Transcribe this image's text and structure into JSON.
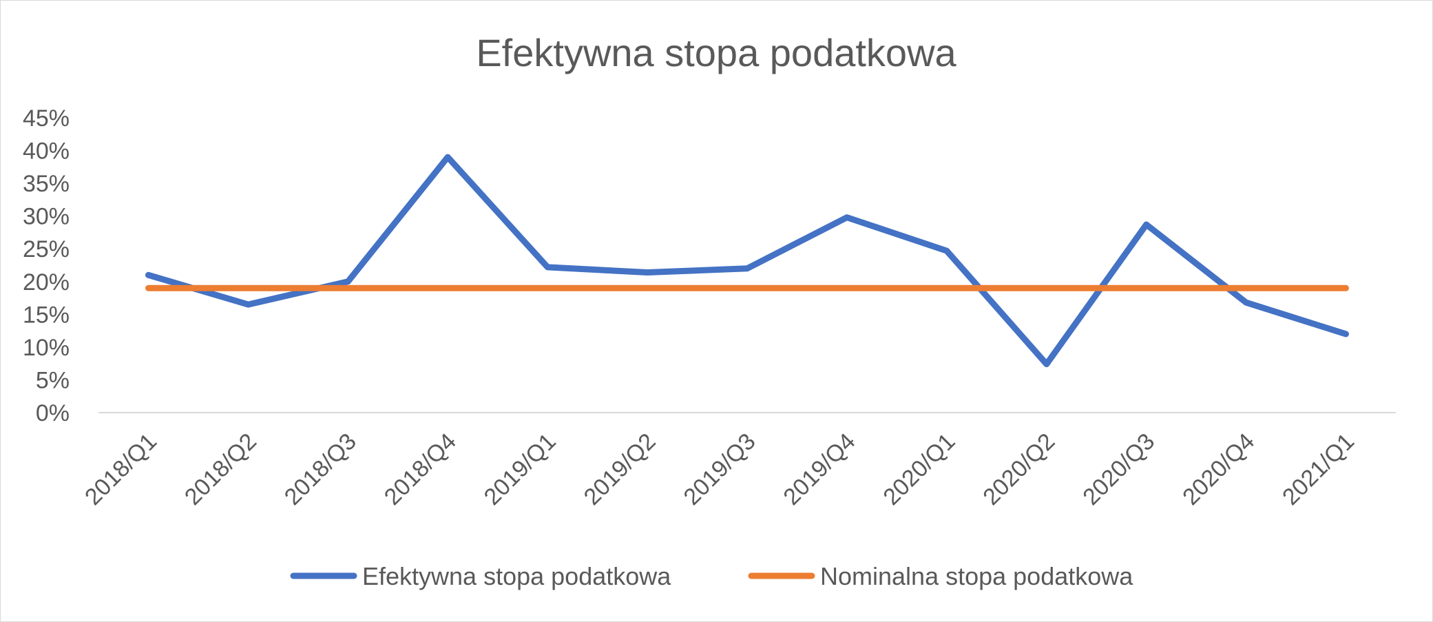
{
  "chart_data": {
    "type": "line",
    "title": "Efektywna stopa podatkowa",
    "xlabel": "",
    "ylabel": "",
    "categories": [
      "2018/Q1",
      "2018/Q2",
      "2018/Q3",
      "2018/Q4",
      "2019/Q1",
      "2019/Q2",
      "2019/Q3",
      "2019/Q4",
      "2020/Q1",
      "2020/Q2",
      "2020/Q3",
      "2020/Q4",
      "2021/Q1"
    ],
    "ylim": [
      0,
      0.45
    ],
    "y_ticks": [
      "0%",
      "5%",
      "10%",
      "15%",
      "20%",
      "25%",
      "30%",
      "35%",
      "40%",
      "45%"
    ],
    "grid": false,
    "legend_position": "bottom",
    "series": [
      {
        "name": "Efektywna stopa podatkowa",
        "color": "#4472C4",
        "values": [
          0.21,
          0.165,
          0.2,
          0.39,
          0.222,
          0.214,
          0.22,
          0.298,
          0.247,
          0.074,
          0.287,
          0.168,
          0.12
        ]
      },
      {
        "name": "Nominalna stopa podatkowa",
        "color": "#ED7D31",
        "values": [
          0.19,
          0.19,
          0.19,
          0.19,
          0.19,
          0.19,
          0.19,
          0.19,
          0.19,
          0.19,
          0.19,
          0.19,
          0.19
        ]
      }
    ]
  }
}
